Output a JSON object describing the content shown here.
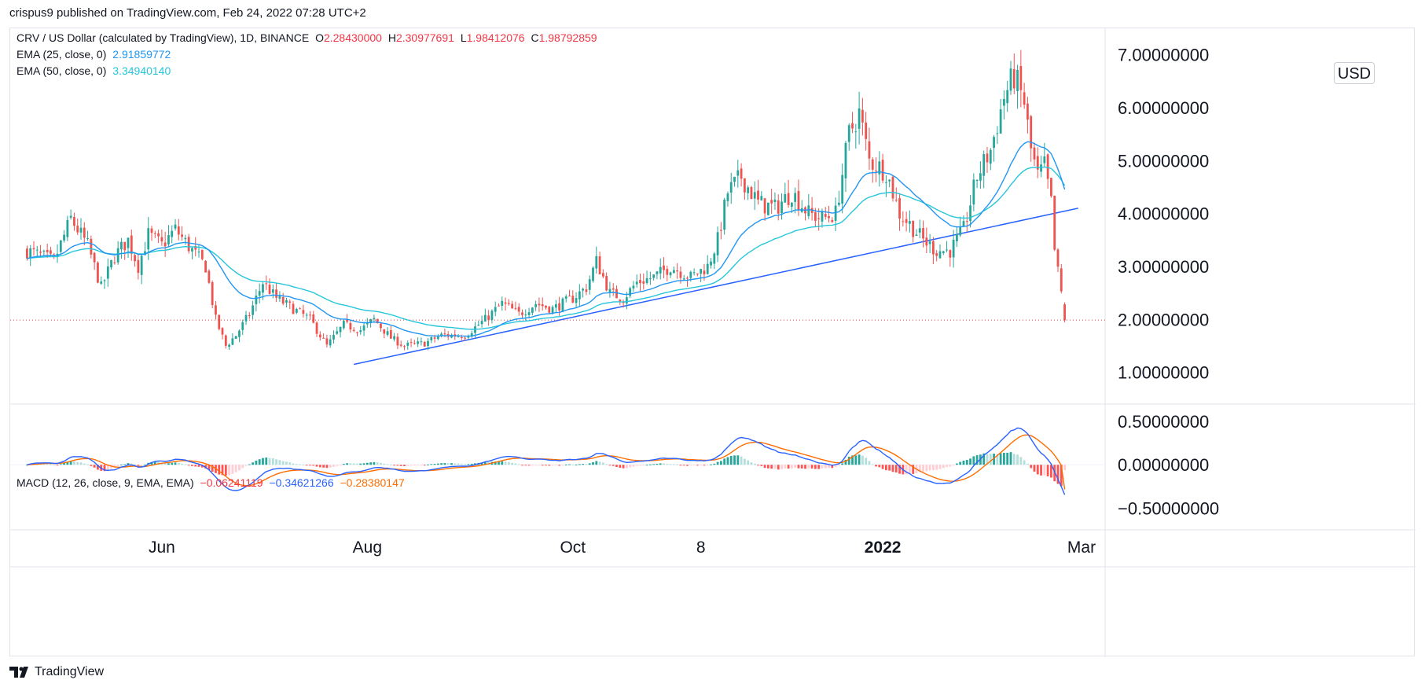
{
  "header": {
    "text": "crispus9 published on TradingView.com, Feb 24, 2022 07:28 UTC+2"
  },
  "legend": {
    "main": {
      "title": "CRV / US Dollar (calculated by TradingView), 1D, BINANCE",
      "o_label": "O",
      "o": "2.28430000",
      "h_label": "H",
      "h": "2.30977691",
      "l_label": "L",
      "l": "1.98412076",
      "c_label": "C",
      "c": "1.98792859"
    },
    "ema25": {
      "label": "EMA (25, close, 0)",
      "value": "2.91859772"
    },
    "ema50": {
      "label": "EMA (50, close, 0)",
      "value": "3.34940140"
    },
    "macd": {
      "label": "MACD (12, 26, close, 9, EMA, EMA)",
      "hist": "−0.06241119",
      "macd": "−0.34621266",
      "signal": "−0.28380147"
    }
  },
  "currency": "USD",
  "footer": {
    "brand": "TradingView"
  },
  "colors": {
    "up": "#26a69a",
    "down": "#ef5350",
    "ema25": "#2196f3",
    "ema50": "#26c6da",
    "macd": "#2962ff",
    "signal": "#ff6d00",
    "hist_up_strong": "#26a69a",
    "hist_up_weak": "#b2dfdb",
    "hist_down_strong": "#ff5252",
    "hist_down_weak": "#ffcdd2",
    "trendline": "#2962ff",
    "last_price_line": "#f23645"
  },
  "chart_data": [
    {
      "type": "candlestick",
      "title": "CRV / US Dollar (calculated by TradingView), 1D, BINANCE",
      "price_axis_labels": [
        "7.00000000",
        "6.00000000",
        "5.00000000",
        "4.00000000",
        "3.00000000",
        "2.00000000",
        "1.00000000"
      ],
      "price_axis_values": [
        7,
        6,
        5,
        4,
        3,
        2,
        1
      ],
      "ylim": [
        0.4,
        7.5
      ],
      "time_axis_labels": [
        "Jun",
        "Aug",
        "Oct",
        "8",
        "2022",
        "Mar"
      ],
      "time_axis_dates": [
        "2021-06-01",
        "2021-08-01",
        "2021-10-01",
        "2021-11-08",
        "2022-01-01",
        "2022-03-01"
      ],
      "date_range": [
        "2021-04-22",
        "2022-02-24"
      ],
      "last_close": 1.98792859,
      "close_path": [
        [
          "2021-04-22",
          3.3
        ],
        [
          "2021-04-30",
          3.1
        ],
        [
          "2021-05-05",
          3.9
        ],
        [
          "2021-05-10",
          3.4
        ],
        [
          "2021-05-14",
          2.6
        ],
        [
          "2021-05-18",
          3.2
        ],
        [
          "2021-05-22",
          3.5
        ],
        [
          "2021-05-25",
          3.0
        ],
        [
          "2021-05-28",
          3.6
        ],
        [
          "2021-06-01",
          3.4
        ],
        [
          "2021-06-05",
          3.7
        ],
        [
          "2021-06-10",
          3.3
        ],
        [
          "2021-06-14",
          3.0
        ],
        [
          "2021-06-17",
          2.0
        ],
        [
          "2021-06-20",
          1.5
        ],
        [
          "2021-06-23",
          1.7
        ],
        [
          "2021-06-27",
          2.1
        ],
        [
          "2021-07-01",
          2.7
        ],
        [
          "2021-07-05",
          2.4
        ],
        [
          "2021-07-10",
          2.2
        ],
        [
          "2021-07-15",
          2.0
        ],
        [
          "2021-07-20",
          1.5
        ],
        [
          "2021-07-25",
          1.9
        ],
        [
          "2021-07-30",
          1.8
        ],
        [
          "2021-08-03",
          2.0
        ],
        [
          "2021-08-08",
          1.65
        ],
        [
          "2021-08-12",
          1.5
        ],
        [
          "2021-08-18",
          1.55
        ],
        [
          "2021-08-23",
          1.7
        ],
        [
          "2021-08-30",
          1.7
        ],
        [
          "2021-09-05",
          2.0
        ],
        [
          "2021-09-10",
          2.3
        ],
        [
          "2021-09-15",
          2.1
        ],
        [
          "2021-09-20",
          2.3
        ],
        [
          "2021-09-25",
          2.2
        ],
        [
          "2021-10-01",
          2.4
        ],
        [
          "2021-10-05",
          2.6
        ],
        [
          "2021-10-08",
          3.1
        ],
        [
          "2021-10-12",
          2.5
        ],
        [
          "2021-10-16",
          2.4
        ],
        [
          "2021-10-20",
          2.7
        ],
        [
          "2021-10-25",
          2.8
        ],
        [
          "2021-10-30",
          3.0
        ],
        [
          "2021-11-05",
          2.8
        ],
        [
          "2021-11-10",
          3.0
        ],
        [
          "2021-11-13",
          3.5
        ],
        [
          "2021-11-16",
          4.4
        ],
        [
          "2021-11-20",
          4.7
        ],
        [
          "2021-11-25",
          4.2
        ],
        [
          "2021-11-30",
          4.1
        ],
        [
          "2021-12-05",
          4.4
        ],
        [
          "2021-12-10",
          4.0
        ],
        [
          "2021-12-14",
          3.9
        ],
        [
          "2021-12-18",
          4.0
        ],
        [
          "2021-12-22",
          5.5
        ],
        [
          "2021-12-25",
          5.9
        ],
        [
          "2021-12-28",
          5.0
        ],
        [
          "2022-01-02",
          4.8
        ],
        [
          "2022-01-06",
          4.0
        ],
        [
          "2022-01-09",
          3.8
        ],
        [
          "2022-01-13",
          3.5
        ],
        [
          "2022-01-17",
          3.3
        ],
        [
          "2022-01-21",
          3.3
        ],
        [
          "2022-01-25",
          3.7
        ],
        [
          "2022-01-29",
          4.7
        ],
        [
          "2022-02-02",
          5.2
        ],
        [
          "2022-02-06",
          6.2
        ],
        [
          "2022-02-09",
          6.6
        ],
        [
          "2022-02-12",
          6.1
        ],
        [
          "2022-02-14",
          5.2
        ],
        [
          "2022-02-16",
          4.7
        ],
        [
          "2022-02-18",
          4.9
        ],
        [
          "2022-02-20",
          4.2
        ],
        [
          "2022-02-21",
          3.3
        ],
        [
          "2022-02-22",
          2.9
        ],
        [
          "2022-02-23",
          2.5
        ],
        [
          "2022-02-24",
          1.99
        ]
      ]
    },
    {
      "type": "macd",
      "title": "MACD (12, 26, close, 9, EMA, EMA)",
      "axis_labels": [
        "0.50000000",
        "0.00000000",
        "−0.50000000"
      ],
      "axis_values": [
        0.5,
        0,
        -0.5
      ],
      "ylim": [
        -0.75,
        0.7
      ],
      "last": {
        "histogram": -0.06241119,
        "macd": -0.34621266,
        "signal": -0.28380147
      }
    }
  ]
}
